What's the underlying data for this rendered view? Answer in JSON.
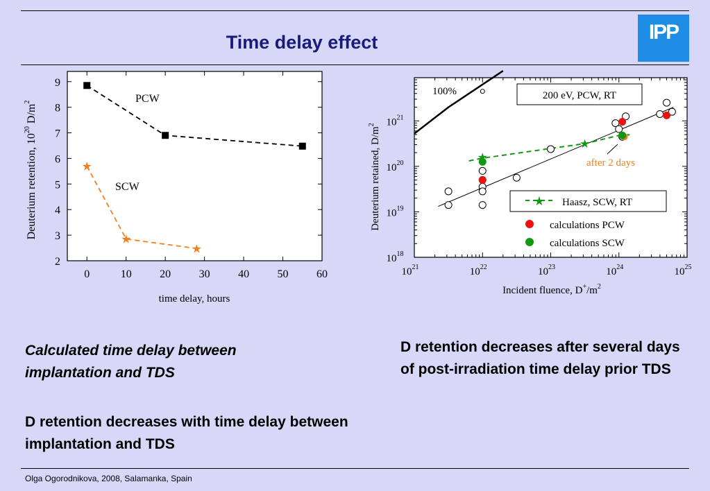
{
  "slide": {
    "title": "Time delay effect",
    "logo_text": "IPP",
    "left_caption": "Calculated time delay between implantation and TDS",
    "left_statement": "D retention decreases with time delay between implantation and TDS",
    "right_statement": "D retention decreases after several days of post-irradiation time delay prior TDS",
    "footer": "Olga Ogorodnikova, 2008, Salamanka, Spain"
  },
  "colors": {
    "background": "#d7d7f7",
    "title": "#1a1a7a",
    "logo": "#1d8de6",
    "pcw": "#000000",
    "scw": "#f08020",
    "red": "#ee1111",
    "green": "#119911"
  },
  "chart_data": [
    {
      "type": "line",
      "xlabel": "time delay, hours",
      "ylabel": "Deuterium retention, 10",
      "ylabel_sup": "20",
      "ylabel_unit": "D/m",
      "ylabel_unit_sup": "2",
      "xlim": [
        -5,
        60
      ],
      "ylim": [
        2,
        9.4
      ],
      "xticks": [
        0,
        10,
        20,
        30,
        40,
        50,
        60
      ],
      "yticks": [
        2,
        3,
        4,
        5,
        6,
        7,
        8,
        9
      ],
      "series": [
        {
          "name": "PCW",
          "marker": "square",
          "color": "#000000",
          "x": [
            0,
            20,
            55
          ],
          "y": [
            8.85,
            6.9,
            6.48
          ]
        },
        {
          "name": "SCW",
          "marker": "star",
          "color": "#f08020",
          "x": [
            0,
            10,
            28
          ],
          "y": [
            5.7,
            2.85,
            2.48
          ]
        }
      ]
    },
    {
      "type": "scatter",
      "xscale": "log",
      "yscale": "log",
      "xlabel": "Incident fluence, D",
      "xlabel_sup": "+",
      "xlabel_tail": "/m",
      "xlabel_tail_sup": "2",
      "ylabel": "Deuterium retained, D/m",
      "ylabel_sup": "2",
      "xlim_exp": [
        21,
        25
      ],
      "ylim_exp": [
        18,
        21.95
      ],
      "xtick_labels": [
        {
          "base": "10",
          "exp": "21"
        },
        {
          "base": "10",
          "exp": "22"
        },
        {
          "base": "10",
          "exp": "23"
        },
        {
          "base": "10",
          "exp": "24"
        },
        {
          "base": "10",
          "exp": "25"
        }
      ],
      "ytick_labels": [
        {
          "base": "10",
          "exp": "18"
        },
        {
          "base": "10",
          "exp": "19"
        },
        {
          "base": "10",
          "exp": "20"
        },
        {
          "base": "10",
          "exp": "21"
        }
      ],
      "annotations": {
        "hundred_percent": "100%",
        "box_label": "200 eV, PCW, RT",
        "after_label": "after 2 days"
      },
      "legend": [
        {
          "label": "Haasz, SCW, RT",
          "marker": "star-dashed"
        },
        {
          "label": "calculations PCW",
          "marker": "red-dot"
        },
        {
          "label": "calculations SCW",
          "marker": "green-dot"
        }
      ],
      "open_circles_log": [
        [
          21.5,
          19.45
        ],
        [
          21.5,
          19.15
        ],
        [
          22,
          19.9
        ],
        [
          22,
          19.7
        ],
        [
          22,
          19.55
        ],
        [
          22,
          19.45
        ],
        [
          22,
          19.15
        ],
        [
          22.5,
          19.75
        ],
        [
          23,
          20.38
        ],
        [
          23.95,
          20.95
        ],
        [
          24,
          20.82
        ],
        [
          24.1,
          21.1
        ],
        [
          24.05,
          20.65
        ],
        [
          24.6,
          21.15
        ],
        [
          24.7,
          21.4
        ],
        [
          24.78,
          21.2
        ],
        [
          22,
          21.65
        ]
      ],
      "red_dots_log": [
        [
          22,
          19.7
        ],
        [
          24.05,
          20.98
        ],
        [
          24.7,
          21.12
        ]
      ],
      "green_dots_log": [
        [
          22,
          20.1
        ],
        [
          24.05,
          20.68
        ]
      ],
      "orange_dot_log": [
        24.08,
        20.65
      ],
      "haasz_line_log": [
        [
          21.8,
          20.12
        ],
        [
          22,
          20.18
        ],
        [
          23.5,
          20.5
        ],
        [
          24,
          20.68
        ],
        [
          24.2,
          20.7
        ]
      ],
      "haasz_stars_log": [
        [
          22,
          20.2
        ],
        [
          23.5,
          20.5
        ]
      ],
      "fit_line_log": [
        [
          21.35,
          19.12
        ],
        [
          24.8,
          21.3
        ]
      ],
      "hundred_line_log": [
        [
          21,
          20.72
        ],
        [
          21.5,
          21.3
        ],
        [
          22.3,
          22.1
        ]
      ]
    }
  ]
}
